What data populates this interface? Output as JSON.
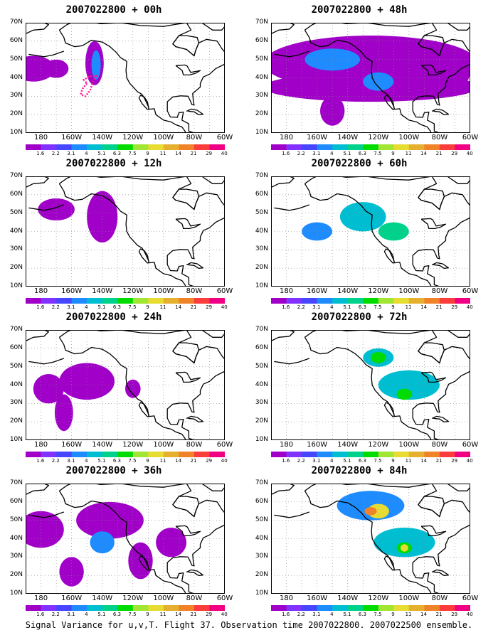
{
  "caption": "Signal Variance for u,v,T. Flight 37. Observation time 2007022800. 2007022500 ensemble.",
  "panels": [
    {
      "title": "2007022800 + 00h",
      "level": 0
    },
    {
      "title": "2007022800 + 48h",
      "level": 4
    },
    {
      "title": "2007022800 + 12h",
      "level": 1
    },
    {
      "title": "2007022800 + 60h",
      "level": 5
    },
    {
      "title": "2007022800 + 24h",
      "level": 2
    },
    {
      "title": "2007022800 + 72h",
      "level": 6
    },
    {
      "title": "2007022800 + 36h",
      "level": 3
    },
    {
      "title": "2007022800 + 84h",
      "level": 7
    }
  ],
  "lat_labels": [
    "70N",
    "60N",
    "50N",
    "40N",
    "30N",
    "20N",
    "10N"
  ],
  "lon_labels": [
    "180",
    "160W",
    "140W",
    "120W",
    "100W",
    "80W",
    "60W"
  ],
  "colorbar": {
    "labels": [
      "1.6",
      "2.2",
      "3.1",
      "4",
      "5.1",
      "6.3",
      "7.5",
      "9",
      "11",
      "14",
      "21",
      "29",
      "40"
    ],
    "colors": [
      "#a000c8",
      "#8232ff",
      "#4646ff",
      "#1e8cff",
      "#00bed2",
      "#00d28c",
      "#00dc00",
      "#a0e632",
      "#e6dc32",
      "#e6af2d",
      "#f08228",
      "#fa3c3c",
      "#f00082"
    ]
  },
  "chart_data": {
    "type": "heatmap",
    "field": "Signal Variance for u,v,T",
    "lat_range": [
      10,
      70
    ],
    "lon_range": [
      -190,
      -60
    ],
    "lead_hours": [
      0,
      12,
      24,
      36,
      48,
      60,
      72,
      84
    ],
    "contour_levels": [
      1.6,
      2.2,
      3.1,
      4,
      5.1,
      6.3,
      7.5,
      9,
      11,
      14,
      21,
      29,
      40
    ]
  }
}
